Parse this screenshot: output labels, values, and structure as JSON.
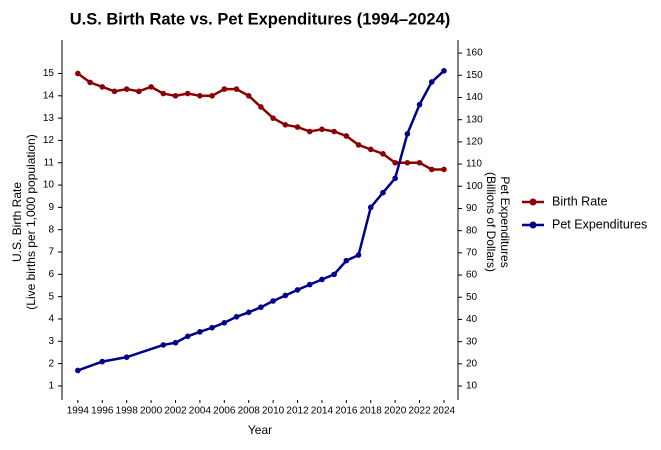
{
  "chart_data": {
    "type": "line",
    "title": "U.S. Birth Rate vs. Pet Expenditures (1994–2024)",
    "xlabel": "Year",
    "ylabel": [
      "U.S. Birth Rate",
      "(Live births per 1,000 population)"
    ],
    "y2label": [
      "Pet Expenditures",
      "(Billions of Dollars)"
    ],
    "xlim": [
      1992.7,
      2025.15
    ],
    "xticks": [
      1994,
      1996,
      1998,
      2000,
      2002,
      2004,
      2006,
      2008,
      2010,
      2012,
      2014,
      2016,
      2018,
      2020,
      2022,
      2024
    ],
    "ylim": [
      0.37,
      16.5
    ],
    "yticks": [
      1,
      2,
      3,
      4,
      5,
      6,
      7,
      8,
      9,
      10,
      11,
      12,
      13,
      14,
      15
    ],
    "y2lim": [
      3.7,
      165.9
    ],
    "y2ticks": [
      10,
      20,
      30,
      40,
      50,
      60,
      70,
      80,
      90,
      100,
      110,
      120,
      130,
      140,
      150,
      160
    ],
    "legend": "right",
    "series": [
      {
        "name": "Birth Rate",
        "color": "#8b0000",
        "x": [
          1994,
          1995,
          1996,
          1997,
          1998,
          1999,
          2000,
          2001,
          2002,
          2003,
          2004,
          2005,
          2006,
          2007,
          2008,
          2009,
          2010,
          2011,
          2012,
          2013,
          2014,
          2015,
          2016,
          2017,
          2018,
          2019,
          2020,
          2021,
          2022,
          2023,
          2024
        ],
        "values": [
          15.0,
          14.6,
          14.4,
          14.2,
          14.3,
          14.2,
          14.4,
          14.1,
          14.0,
          14.1,
          14.0,
          14.0,
          14.3,
          14.3,
          14.0,
          13.5,
          13.0,
          12.7,
          12.6,
          12.4,
          12.5,
          12.4,
          12.2,
          11.8,
          11.6,
          11.4,
          11.0,
          11.0,
          11.0,
          10.7,
          10.7
        ]
      },
      {
        "name": "Pet Expenditures",
        "color": "#00008b",
        "axis": "y2",
        "x": [
          1994,
          1996,
          1998,
          2001,
          2002,
          2003,
          2004,
          2005,
          2006,
          2007,
          2008,
          2009,
          2010,
          2011,
          2012,
          2013,
          2014,
          2015,
          2016,
          2017,
          2018,
          2019,
          2020,
          2021,
          2022,
          2023,
          2024
        ],
        "values": [
          17.0,
          21.0,
          23.0,
          28.5,
          29.5,
          32.4,
          34.4,
          36.3,
          38.5,
          41.2,
          43.2,
          45.5,
          48.3,
          50.8,
          53.3,
          55.7,
          58.0,
          60.3,
          66.5,
          69.0,
          90.5,
          97.1,
          103.6,
          123.6,
          136.8,
          147.0,
          152.0
        ]
      }
    ]
  }
}
